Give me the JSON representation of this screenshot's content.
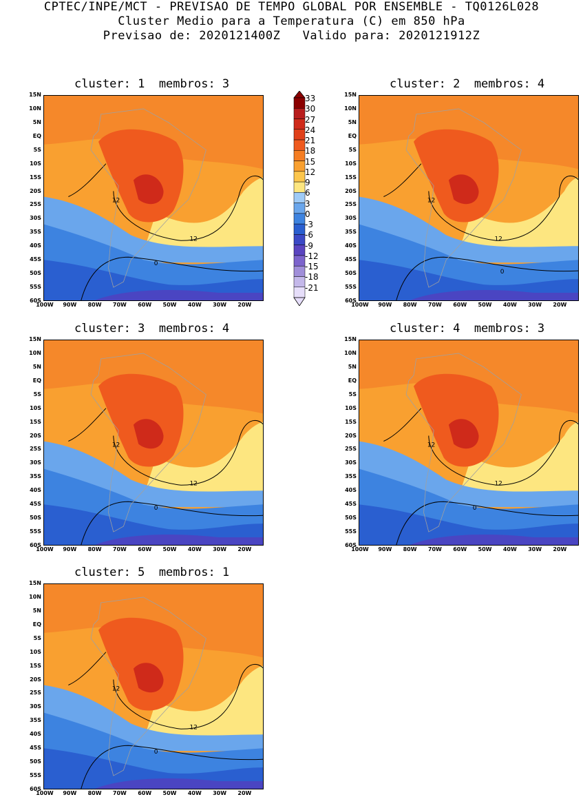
{
  "header": {
    "line1": "CPTEC/INPE/MCT - PREVISAO DE TEMPO GLOBAL POR ENSEMBLE - TQ0126L028",
    "line2": "Cluster Medio para a Temperatura (C) em 850 hPa",
    "line3": "Previsao de: 2020121400Z   Valido para: 2020121912Z"
  },
  "panels": [
    {
      "title": "cluster: 1  membros: 3"
    },
    {
      "title": "cluster: 2  membros: 4"
    },
    {
      "title": "cluster: 3  membros: 4"
    },
    {
      "title": "cluster: 4  membros: 3"
    },
    {
      "title": "cluster: 5  membros: 1"
    }
  ],
  "axes": {
    "lat_labels": [
      "15N",
      "10N",
      "5N",
      "EQ",
      "5S",
      "10S",
      "15S",
      "20S",
      "25S",
      "30S",
      "35S",
      "40S",
      "45S",
      "50S",
      "55S",
      "60S"
    ],
    "lon_labels": [
      "100W",
      "90W",
      "80W",
      "70W",
      "60W",
      "50W",
      "40W",
      "30W",
      "20W"
    ]
  },
  "contour_labels": [
    "12",
    "0"
  ],
  "colorbar": {
    "levels": [
      "33",
      "30",
      "27",
      "24",
      "21",
      "18",
      "15",
      "12",
      "9",
      "6",
      "3",
      "0",
      "-3",
      "-6",
      "-9",
      "-12",
      "-15",
      "-18",
      "-21"
    ],
    "colors": [
      "#8b0000",
      "#b81d1d",
      "#cf2a1a",
      "#e0401a",
      "#ef5a1e",
      "#f57d22",
      "#f9a030",
      "#fcc64c",
      "#fde680",
      "#9fcbf7",
      "#6aa6ec",
      "#3d83e0",
      "#2a5fd0",
      "#3b49c6",
      "#5a44c0",
      "#7c63cc",
      "#a08ed9",
      "#c4b8ea",
      "#e6defa"
    ]
  },
  "colors": {
    "ocean_warm": "#f9a030",
    "land_hot": "#ef5a1e",
    "tropics": "#f57d22",
    "cold": "#2a5fd0",
    "contour": "#000000",
    "borders": "#a0a0a0"
  }
}
